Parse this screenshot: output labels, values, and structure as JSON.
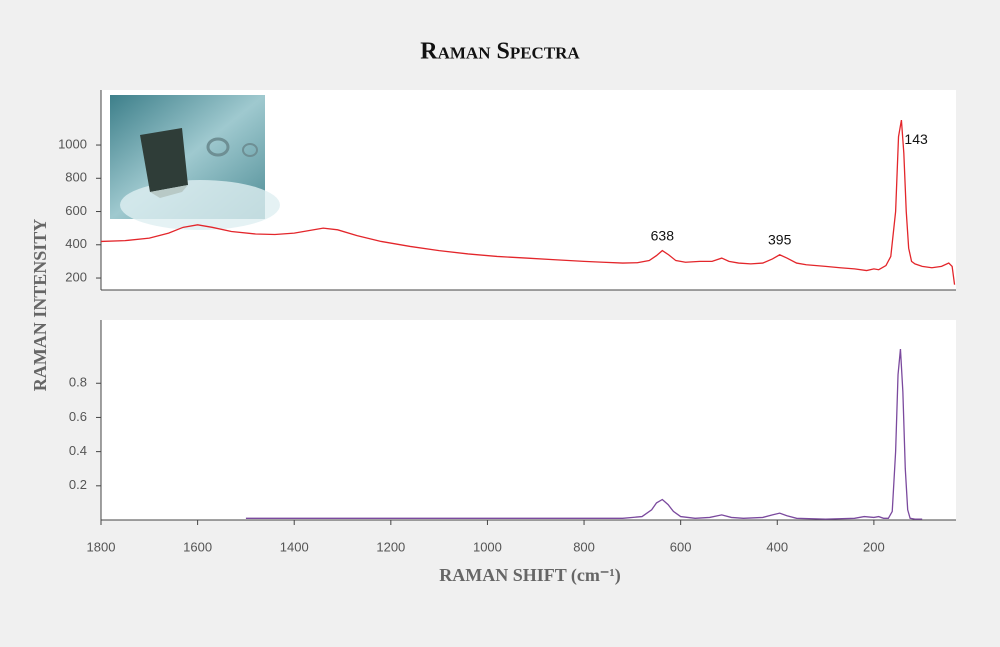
{
  "chart_data": [
    {
      "type": "line",
      "title": "Raman Spectra",
      "ylabel": "RAMAN INTENSITY",
      "color": "#e3262b",
      "x": [
        1800,
        1750,
        1700,
        1660,
        1630,
        1600,
        1570,
        1530,
        1480,
        1440,
        1400,
        1370,
        1340,
        1310,
        1270,
        1220,
        1160,
        1100,
        1040,
        980,
        920,
        860,
        800,
        760,
        720,
        690,
        665,
        650,
        638,
        625,
        610,
        590,
        560,
        535,
        515,
        500,
        480,
        455,
        430,
        410,
        395,
        380,
        360,
        340,
        300,
        270,
        240,
        215,
        200,
        190,
        175,
        165,
        155,
        149,
        143,
        138,
        133,
        128,
        122,
        115,
        100,
        80,
        60,
        45,
        38,
        33
      ],
      "values": [
        420,
        425,
        440,
        470,
        505,
        520,
        505,
        480,
        465,
        462,
        470,
        485,
        500,
        490,
        455,
        420,
        390,
        365,
        345,
        330,
        320,
        310,
        300,
        295,
        290,
        292,
        305,
        335,
        365,
        340,
        305,
        295,
        300,
        300,
        320,
        300,
        290,
        285,
        290,
        315,
        340,
        320,
        290,
        280,
        270,
        262,
        255,
        245,
        255,
        250,
        275,
        330,
        600,
        1050,
        1150,
        950,
        600,
        380,
        300,
        285,
        270,
        262,
        270,
        290,
        270,
        160
      ],
      "xlim": [
        1800,
        30
      ],
      "ylim": [
        128,
        1331
      ],
      "yticks": [
        200,
        400,
        600,
        800,
        1000
      ],
      "annotations": [
        {
          "label": "638",
          "x": 638
        },
        {
          "label": "395",
          "x": 395
        },
        {
          "label": "143",
          "x": 143
        }
      ]
    },
    {
      "type": "line",
      "xlabel": "RAMAN SHIFT (cm⁻¹)",
      "color": "#7b4a9e",
      "x": [
        1500,
        1200,
        900,
        720,
        680,
        660,
        650,
        638,
        626,
        615,
        600,
        570,
        540,
        515,
        495,
        470,
        430,
        410,
        395,
        380,
        360,
        300,
        240,
        220,
        200,
        190,
        180,
        170,
        162,
        155,
        150,
        145,
        140,
        135,
        130,
        125,
        115,
        100
      ],
      "values": [
        0.01,
        0.01,
        0.01,
        0.01,
        0.02,
        0.06,
        0.1,
        0.12,
        0.09,
        0.05,
        0.02,
        0.01,
        0.015,
        0.03,
        0.015,
        0.01,
        0.015,
        0.03,
        0.04,
        0.025,
        0.01,
        0.005,
        0.01,
        0.02,
        0.015,
        0.02,
        0.01,
        0.01,
        0.05,
        0.4,
        0.85,
        1.0,
        0.75,
        0.3,
        0.06,
        0.01,
        0.005,
        0.005
      ],
      "xlim": [
        1800,
        30
      ],
      "ylim": [
        0,
        1.17
      ],
      "yticks": [
        0.2,
        0.4,
        0.6,
        0.8
      ],
      "xticks": [
        1800,
        1600,
        1400,
        1200,
        1000,
        800,
        600,
        400,
        200
      ]
    }
  ]
}
